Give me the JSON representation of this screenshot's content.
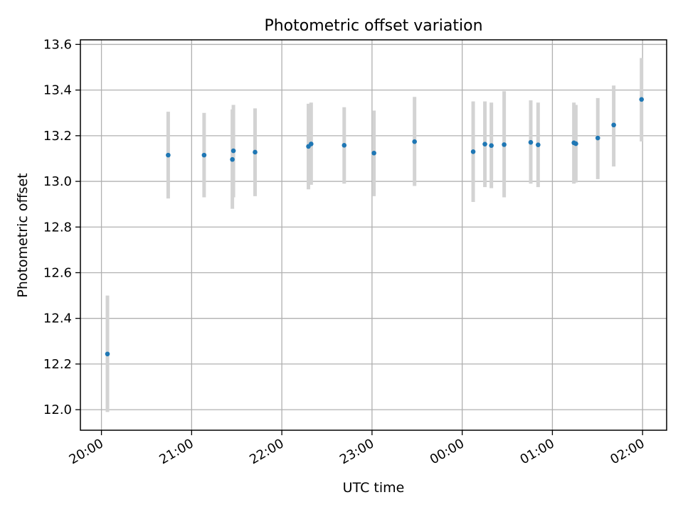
{
  "chart_data": {
    "type": "scatter",
    "title": "Photometric offset variation",
    "xlabel": "UTC time",
    "ylabel": "Photometric offset",
    "x_unit": "minutes",
    "x_ticks": [
      "20:00",
      "21:00",
      "22:00",
      "23:00",
      "00:00",
      "01:00",
      "02:00"
    ],
    "x_tick_values": [
      1200,
      1260,
      1320,
      1380,
      1440,
      1500,
      1560
    ],
    "xlim": [
      1186,
      1576
    ],
    "y_ticks": [
      "12.0",
      "12.2",
      "12.4",
      "12.6",
      "12.8",
      "13.0",
      "13.2",
      "13.4",
      "13.6"
    ],
    "y_tick_values": [
      12.0,
      12.2,
      12.4,
      12.6,
      12.8,
      13.0,
      13.2,
      13.4,
      13.6
    ],
    "ylim": [
      11.91,
      13.62
    ],
    "grid": true,
    "colors": {
      "point": "#1f77b4",
      "errorbar": "#d3d3d3",
      "grid": "#b0b0b0",
      "axis": "#000000"
    },
    "points": [
      {
        "x": 1204.0,
        "y": 12.244,
        "yerr_low": 11.99,
        "yerr_high": 12.5
      },
      {
        "x": 1244.4,
        "y": 13.115,
        "yerr_low": 12.925,
        "yerr_high": 13.305
      },
      {
        "x": 1268.3,
        "y": 13.115,
        "yerr_low": 12.93,
        "yerr_high": 13.3
      },
      {
        "x": 1287.1,
        "y": 13.096,
        "yerr_low": 12.88,
        "yerr_high": 13.315
      },
      {
        "x": 1287.8,
        "y": 13.134,
        "yerr_low": 12.93,
        "yerr_high": 13.335
      },
      {
        "x": 1302.2,
        "y": 13.128,
        "yerr_low": 12.935,
        "yerr_high": 13.32
      },
      {
        "x": 1337.7,
        "y": 13.153,
        "yerr_low": 12.965,
        "yerr_high": 13.34
      },
      {
        "x": 1339.5,
        "y": 13.164,
        "yerr_low": 12.985,
        "yerr_high": 13.345
      },
      {
        "x": 1361.5,
        "y": 13.158,
        "yerr_low": 12.99,
        "yerr_high": 13.325
      },
      {
        "x": 1381.3,
        "y": 13.124,
        "yerr_low": 12.935,
        "yerr_high": 13.31
      },
      {
        "x": 1408.3,
        "y": 13.174,
        "yerr_low": 12.98,
        "yerr_high": 13.37
      },
      {
        "x": 1447.3,
        "y": 13.13,
        "yerr_low": 12.91,
        "yerr_high": 13.35
      },
      {
        "x": 1455.1,
        "y": 13.163,
        "yerr_low": 12.975,
        "yerr_high": 13.35
      },
      {
        "x": 1459.4,
        "y": 13.157,
        "yerr_low": 12.97,
        "yerr_high": 13.345
      },
      {
        "x": 1467.9,
        "y": 13.161,
        "yerr_low": 12.93,
        "yerr_high": 13.395
      },
      {
        "x": 1485.6,
        "y": 13.171,
        "yerr_low": 12.99,
        "yerr_high": 13.355
      },
      {
        "x": 1490.5,
        "y": 13.16,
        "yerr_low": 12.975,
        "yerr_high": 13.345
      },
      {
        "x": 1514.3,
        "y": 13.169,
        "yerr_low": 12.99,
        "yerr_high": 13.345
      },
      {
        "x": 1515.6,
        "y": 13.165,
        "yerr_low": 12.995,
        "yerr_high": 13.335
      },
      {
        "x": 1530.2,
        "y": 13.19,
        "yerr_low": 13.01,
        "yerr_high": 13.365
      },
      {
        "x": 1540.8,
        "y": 13.247,
        "yerr_low": 13.065,
        "yerr_high": 13.42
      },
      {
        "x": 1559.3,
        "y": 13.359,
        "yerr_low": 13.175,
        "yerr_high": 13.54
      }
    ]
  }
}
